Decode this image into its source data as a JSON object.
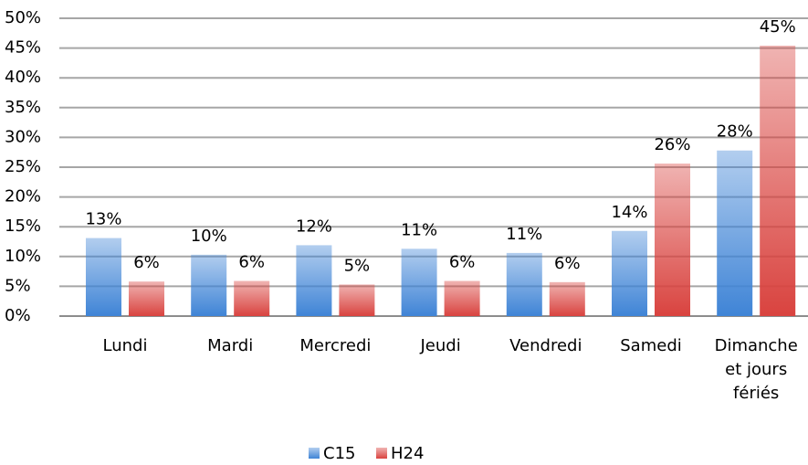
{
  "chart_data": {
    "type": "bar",
    "categories": [
      "Lundi",
      "Mardi",
      "Mercredi",
      "Jeudi",
      "Vendredi",
      "Samedi",
      "Dimanche et jours fériés"
    ],
    "series": [
      {
        "name": "C15",
        "color": "#3f84d6",
        "values": [
          13.1,
          10.3,
          11.9,
          11.3,
          10.6,
          14.3,
          27.8
        ],
        "value_labels": [
          "13%",
          "10%",
          "12%",
          "11%",
          "11%",
          "14%",
          "28%"
        ]
      },
      {
        "name": "H24",
        "color": "#d9433f",
        "values": [
          5.8,
          5.9,
          5.3,
          5.9,
          5.7,
          25.6,
          45.4
        ],
        "value_labels": [
          "6%",
          "6%",
          "5%",
          "6%",
          "6%",
          "26%",
          "45%"
        ]
      }
    ],
    "ylim": [
      0,
      50
    ],
    "yticks": [
      {
        "value": 0,
        "label": "0%"
      },
      {
        "value": 5,
        "label": "5%"
      },
      {
        "value": 10,
        "label": "10%"
      },
      {
        "value": 15,
        "label": "15%"
      },
      {
        "value": 20,
        "label": "20%"
      },
      {
        "value": 25,
        "label": "25%"
      },
      {
        "value": 30,
        "label": "30%"
      },
      {
        "value": 35,
        "label": "35%"
      },
      {
        "value": 40,
        "label": "40%"
      },
      {
        "value": 45,
        "label": "45%"
      },
      {
        "value": 50,
        "label": "50%"
      }
    ],
    "grid": true,
    "legend": "bottom"
  }
}
